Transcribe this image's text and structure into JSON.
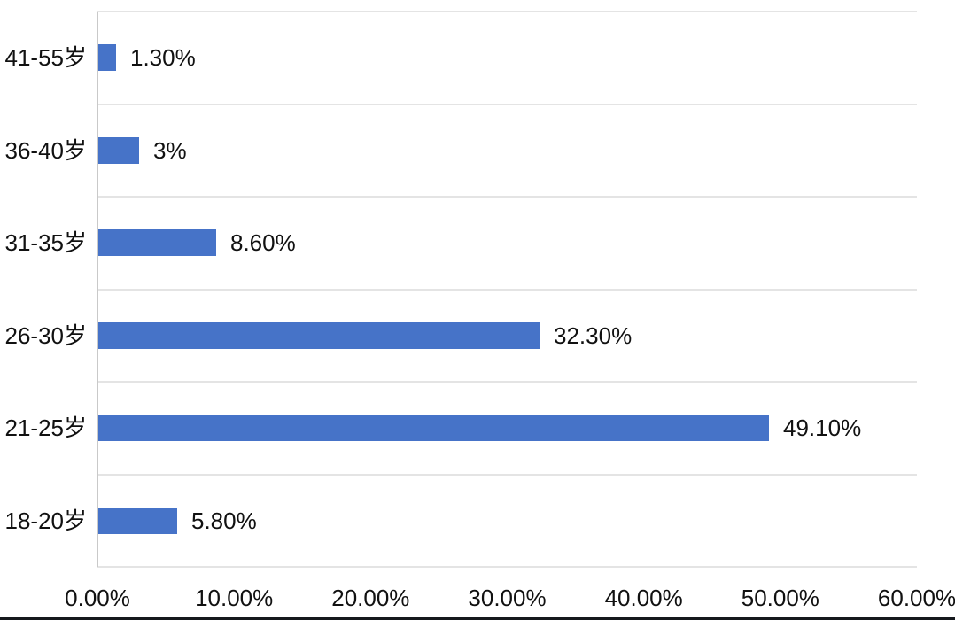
{
  "chart_data": {
    "type": "bar",
    "orientation": "horizontal",
    "title": "",
    "xlabel": "",
    "ylabel": "",
    "categories_top_to_bottom": [
      "41-55岁",
      "36-40岁",
      "31-35岁",
      "26-30岁",
      "21-25岁",
      "18-20岁"
    ],
    "values_percent": [
      1.3,
      3,
      8.6,
      32.3,
      49.1,
      5.8
    ],
    "value_labels": [
      "1.30%",
      "3%",
      "8.60%",
      "32.30%",
      "49.10%",
      "5.80%"
    ],
    "x_axis_ticks": [
      "0.00%",
      "10.00%",
      "20.00%",
      "30.00%",
      "40.00%",
      "50.00%",
      "60.00%"
    ],
    "xlim": [
      0,
      60
    ],
    "grid": "horizontal-band-separators-only",
    "legend": "none",
    "colors": {
      "bar": "#4673c8",
      "gridline": "#e4e4e4",
      "axis_line": "#c9c9c9",
      "text": "#111111",
      "background": "#ffffff"
    }
  }
}
